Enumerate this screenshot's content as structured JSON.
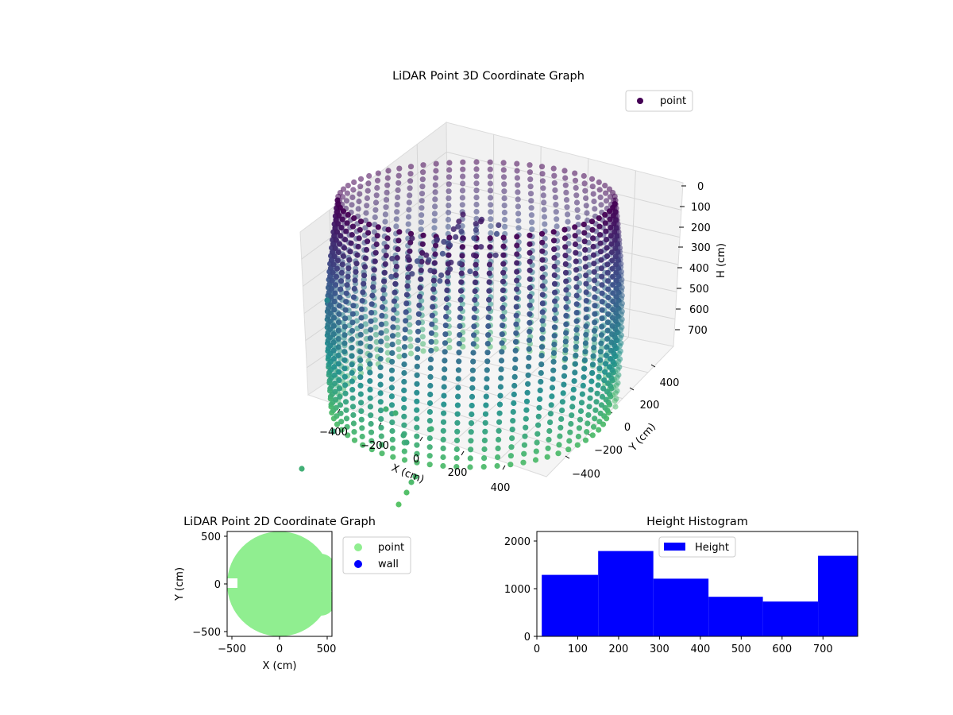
{
  "chart_data": [
    {
      "type": "scatter3d",
      "title": "LiDAR Point 3D Coordinate Graph",
      "xlabel": "X (cm)",
      "ylabel": "Y (cm)",
      "zlabel": "H (cm)",
      "x_ticks": [
        "−400",
        "−200",
        "0",
        "200",
        "400"
      ],
      "y_ticks": [
        "−400",
        "−200",
        "0",
        "200",
        "400"
      ],
      "z_ticks": [
        "0",
        "100",
        "200",
        "300",
        "400",
        "500",
        "600",
        "700"
      ],
      "xlim": [
        -550,
        550
      ],
      "ylim": [
        -550,
        550
      ],
      "zlim": [
        0,
        780
      ],
      "z_inverted": true,
      "legend": {
        "position": "top-right",
        "entries": [
          "point"
        ]
      },
      "series": [
        {
          "name": "point",
          "shape": "cylindrical wall of vertical scan lines",
          "radius": 450,
          "height_range": [
            0,
            780
          ],
          "colormap": [
            "#440154",
            "#3b528b",
            "#21908d",
            "#5dc863"
          ],
          "color": "#440154"
        }
      ]
    },
    {
      "type": "scatter",
      "title": "LiDAR Point 2D Coordinate Graph",
      "xlabel": "X (cm)",
      "ylabel": "Y (cm)",
      "x_ticks": [
        "−500",
        "0",
        "500"
      ],
      "y_ticks": [
        "500",
        "0",
        "−500"
      ],
      "xlim": [
        -550,
        550
      ],
      "ylim": [
        -550,
        550
      ],
      "legend": {
        "position": "outside-right",
        "entries": [
          "point",
          "wall"
        ]
      },
      "series": [
        {
          "name": "point",
          "color": "#90ee90",
          "shape": "filled disk",
          "radius": 450
        },
        {
          "name": "wall",
          "color": "#0000ff",
          "values": []
        }
      ]
    },
    {
      "type": "bar",
      "title": "Height Histogram",
      "xlim": [
        0,
        785
      ],
      "ylim": [
        0,
        2200
      ],
      "x_ticks": [
        "0",
        "100",
        "200",
        "300",
        "400",
        "500",
        "600",
        "700"
      ],
      "y_ticks": [
        "0",
        "1000",
        "2000"
      ],
      "legend": {
        "position": "top-center",
        "entries": [
          "Height"
        ]
      },
      "series": [
        {
          "name": "Height",
          "color": "#0000ff",
          "bins": [
            {
              "from": 12,
              "to": 150,
              "count": 1290
            },
            {
              "from": 150,
              "to": 285,
              "count": 1790
            },
            {
              "from": 285,
              "to": 420,
              "count": 1210
            },
            {
              "from": 420,
              "to": 553,
              "count": 830
            },
            {
              "from": 553,
              "to": 688,
              "count": 730
            },
            {
              "from": 688,
              "to": 785,
              "count": 1690
            }
          ]
        }
      ]
    }
  ]
}
